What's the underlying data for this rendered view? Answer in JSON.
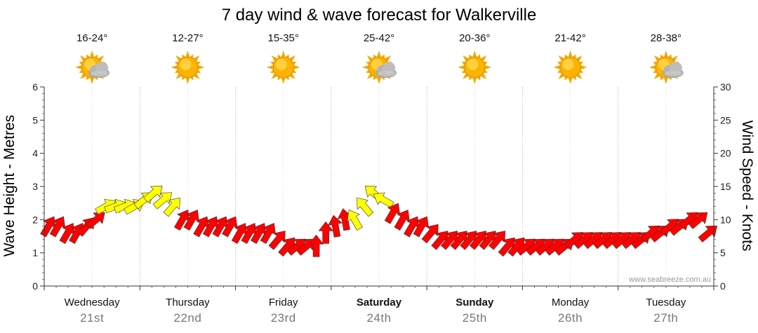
{
  "chart_data": {
    "type": "line",
    "title": "7 day wind & wave forecast for Walkerville",
    "ylabel_left": "Wave Height - Metres",
    "ylabel_right": "Wind Speed - Knots",
    "ylim_left": [
      0,
      6
    ],
    "ylim_right": [
      0,
      30
    ],
    "yticks_left": [
      "0",
      "1",
      "2",
      "3",
      "4",
      "5",
      "6"
    ],
    "yticks_right": [
      "0",
      "5",
      "10",
      "15",
      "20",
      "25",
      "30"
    ],
    "grid": true,
    "credit": "www.seabreeze.com.au",
    "days": [
      {
        "name": "Wednesday",
        "date": "21st",
        "temp": "16-24°",
        "icon": "partly-cloudy-icon",
        "bold": false
      },
      {
        "name": "Thursday",
        "date": "22nd",
        "temp": "12-27°",
        "icon": "sunny-icon",
        "bold": false
      },
      {
        "name": "Friday",
        "date": "23rd",
        "temp": "15-35°",
        "icon": "sunny-icon",
        "bold": false
      },
      {
        "name": "Saturday",
        "date": "24th",
        "temp": "25-42°",
        "icon": "partly-cloudy-icon",
        "bold": true
      },
      {
        "name": "Sunday",
        "date": "25th",
        "temp": "20-36°",
        "icon": "sunny-icon",
        "bold": true
      },
      {
        "name": "Monday",
        "date": "26th",
        "temp": "21-42°",
        "icon": "sunny-icon",
        "bold": false
      },
      {
        "name": "Tuesday",
        "date": "27th",
        "temp": "28-38°",
        "icon": "partly-cloudy-icon",
        "bold": false
      }
    ],
    "colors": {
      "moderate": "#ff0000",
      "strong": "#ffff00",
      "outline": "#333333"
    },
    "series": [
      {
        "name": "Wind Speed - Knots",
        "axis": "right",
        "x": [
          0.0,
          0.1,
          0.2,
          0.3,
          0.4,
          0.5,
          0.6,
          0.7,
          0.8,
          0.9,
          1.0,
          1.1,
          1.2,
          1.3,
          1.4,
          1.5,
          1.6,
          1.7,
          1.8,
          1.9,
          2.0,
          2.1,
          2.2,
          2.3,
          2.4,
          2.5,
          2.6,
          2.7,
          2.8,
          2.9,
          3.0,
          3.1,
          3.2,
          3.3,
          3.4,
          3.5,
          3.6,
          3.7,
          3.8,
          3.9,
          4.0,
          4.1,
          4.2,
          4.3,
          4.4,
          4.5,
          4.6,
          4.7,
          4.8,
          4.9,
          5.0,
          5.1,
          5.2,
          5.3,
          5.4,
          5.5,
          5.6,
          5.7,
          5.8,
          5.9,
          6.0,
          6.1,
          6.2,
          6.3,
          6.4,
          6.5,
          6.6,
          6.7,
          6.8,
          6.9
        ],
        "values": [
          9,
          9,
          8,
          8,
          9,
          10,
          12,
          12,
          12,
          12,
          13,
          14,
          13,
          12,
          10,
          10,
          9,
          9,
          9,
          9,
          8,
          8,
          8,
          8,
          7,
          6,
          6,
          6,
          6,
          8,
          9,
          10,
          10,
          12,
          14,
          13,
          11,
          10,
          9,
          9,
          8,
          7,
          7,
          7,
          7,
          7,
          7,
          7,
          6,
          6,
          6,
          6,
          6,
          6,
          6,
          7,
          7,
          7,
          7,
          7,
          7,
          7,
          7,
          8,
          8,
          9,
          9,
          10,
          10,
          8
        ],
        "arrow_direction_deg": [
          300,
          300,
          300,
          300,
          310,
          320,
          330,
          340,
          340,
          330,
          320,
          320,
          320,
          310,
          300,
          300,
          300,
          300,
          300,
          300,
          300,
          300,
          300,
          300,
          310,
          310,
          320,
          320,
          270,
          270,
          260,
          260,
          240,
          230,
          220,
          210,
          300,
          300,
          300,
          300,
          310,
          310,
          310,
          310,
          310,
          310,
          310,
          310,
          310,
          310,
          320,
          320,
          320,
          320,
          320,
          320,
          320,
          320,
          320,
          320,
          320,
          320,
          320,
          320,
          320,
          320,
          320,
          320,
          320,
          320
        ],
        "strength": [
          "m",
          "m",
          "m",
          "m",
          "m",
          "m",
          "s",
          "s",
          "s",
          "s",
          "s",
          "s",
          "s",
          "s",
          "m",
          "m",
          "m",
          "m",
          "m",
          "m",
          "m",
          "m",
          "m",
          "m",
          "m",
          "m",
          "m",
          "m",
          "m",
          "m",
          "m",
          "m",
          "s",
          "s",
          "s",
          "s",
          "m",
          "m",
          "m",
          "m",
          "m",
          "m",
          "m",
          "m",
          "m",
          "m",
          "m",
          "m",
          "m",
          "m",
          "m",
          "m",
          "m",
          "m",
          "m",
          "m",
          "m",
          "m",
          "m",
          "m",
          "m",
          "m",
          "m",
          "m",
          "m",
          "m",
          "m",
          "m",
          "m",
          "m"
        ]
      }
    ]
  }
}
